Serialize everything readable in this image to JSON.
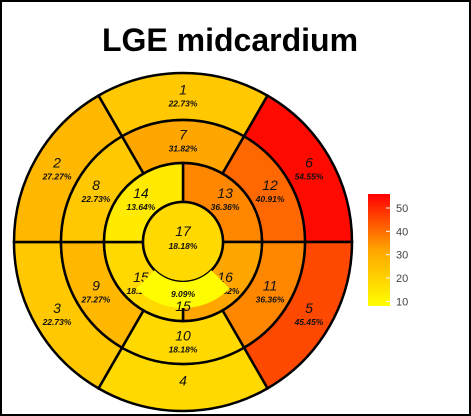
{
  "chart_data": {
    "type": "bullseye",
    "title": "LGE midcardium",
    "segments": [
      {
        "id": "1",
        "value": 22.73,
        "label": "22.73%"
      },
      {
        "id": "2",
        "value": 27.27,
        "label": "27.27%"
      },
      {
        "id": "3",
        "value": 22.73,
        "label": "22.73%"
      },
      {
        "id": "4",
        "value": 18.18,
        "label": ""
      },
      {
        "id": "5",
        "value": 45.45,
        "label": "45.45%"
      },
      {
        "id": "6",
        "value": 54.55,
        "label": "54.55%"
      },
      {
        "id": "7",
        "value": 31.82,
        "label": "31.82%"
      },
      {
        "id": "8",
        "value": 22.73,
        "label": "22.73%"
      },
      {
        "id": "9",
        "value": 27.27,
        "label": "27.27%"
      },
      {
        "id": "10",
        "value": 18.18,
        "label": "18.18%"
      },
      {
        "id": "11",
        "value": 36.36,
        "label": "36.36%"
      },
      {
        "id": "12",
        "value": 40.91,
        "label": "40.91%"
      },
      {
        "id": "13",
        "value": 36.36,
        "label": "36.36%"
      },
      {
        "id": "14",
        "value": 13.64,
        "label": "13.64%"
      },
      {
        "id": "15",
        "value": 18.18,
        "label": "18.18%"
      },
      {
        "id": "16",
        "value": 31.82,
        "label": "31.82%"
      },
      {
        "id": "17",
        "value": 18.18,
        "label": "18.18%"
      },
      {
        "id": "9.09",
        "value": 9.09,
        "label": "9.09%"
      }
    ],
    "colorbar": {
      "ticks": [
        50,
        40,
        30,
        20,
        10
      ],
      "range": [
        8,
        56
      ],
      "color_low": "#ffff00",
      "color_mid": "#ffa500",
      "color_high": "#ff0000"
    }
  }
}
